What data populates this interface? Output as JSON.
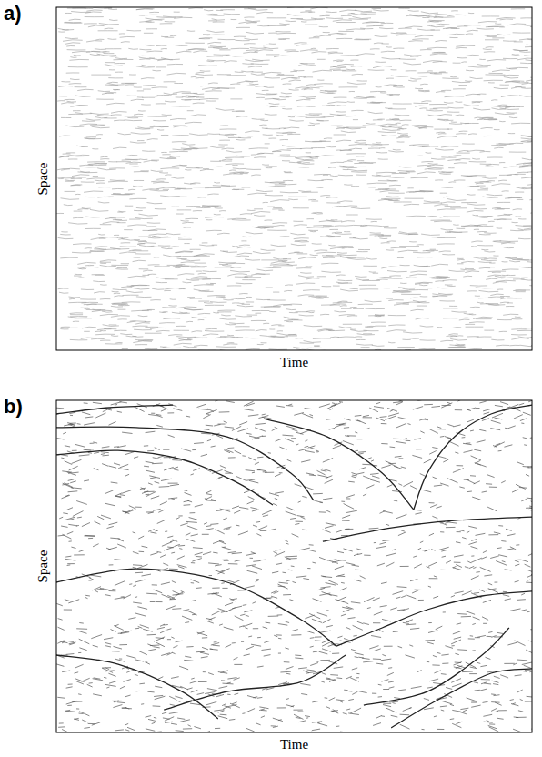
{
  "chart_data": [
    {
      "type": "spacetime",
      "panel": "a)",
      "x_label": "Time",
      "y_label": "Space",
      "xlim": [
        0,
        1
      ],
      "ylim": [
        0,
        1
      ],
      "tick_labels": false,
      "color": "#999999",
      "series": []
    },
    {
      "type": "spacetime",
      "panel": "b)",
      "x_label": "Time",
      "y_label": "Space",
      "xlim": [
        0,
        1
      ],
      "ylim": [
        0,
        1
      ],
      "tick_labels": false,
      "color": "#222222",
      "series": [
        {
          "x": [
            0,
            0.168,
            0.359,
            0.493,
            0.541
          ],
          "values": [
            0.918,
            0.918,
            0.89,
            0.781,
            0.699
          ]
        },
        {
          "x": [
            0,
            0.13,
            0.264,
            0.379,
            0.455
          ],
          "values": [
            0.836,
            0.849,
            0.822,
            0.753,
            0.685
          ]
        },
        {
          "x": [
            0.436,
            0.57,
            0.685,
            0.751
          ],
          "values": [
            0.945,
            0.89,
            0.781,
            0.671
          ]
        },
        {
          "x": [
            0.751,
            0.78,
            0.837,
            0.914,
            1
          ],
          "values": [
            0.671,
            0.781,
            0.89,
            0.959,
            0.986
          ]
        },
        {
          "x": [
            0.56,
            0.704,
            0.837,
            1
          ],
          "values": [
            0.575,
            0.616,
            0.638,
            0.649
          ]
        },
        {
          "x": [
            0,
            0.168,
            0.359,
            0.512,
            0.589
          ],
          "values": [
            0.452,
            0.493,
            0.452,
            0.342,
            0.26
          ]
        },
        {
          "x": [
            0.589,
            0.685,
            0.78,
            0.895,
            1
          ],
          "values": [
            0.26,
            0.315,
            0.37,
            0.411,
            0.425
          ]
        },
        {
          "x": [
            0.646,
            0.78,
            0.895,
            0.952
          ],
          "values": [
            0.082,
            0.123,
            0.233,
            0.315
          ]
        },
        {
          "x": [
            0.226,
            0.359,
            0.512,
            0.608
          ],
          "values": [
            0.068,
            0.123,
            0.151,
            0.233
          ]
        },
        {
          "x": [
            0,
            0.13,
            0.264,
            0.34
          ],
          "values": [
            0.233,
            0.205,
            0.123,
            0.041
          ]
        },
        {
          "x": [
            0.704,
            0.799,
            0.914,
            1
          ],
          "values": [
            0.014,
            0.096,
            0.178,
            0.192
          ]
        },
        {
          "x": [
            0,
            0.111,
            0.245
          ],
          "values": [
            0.959,
            0.978,
            0.986
          ]
        }
      ]
    }
  ]
}
